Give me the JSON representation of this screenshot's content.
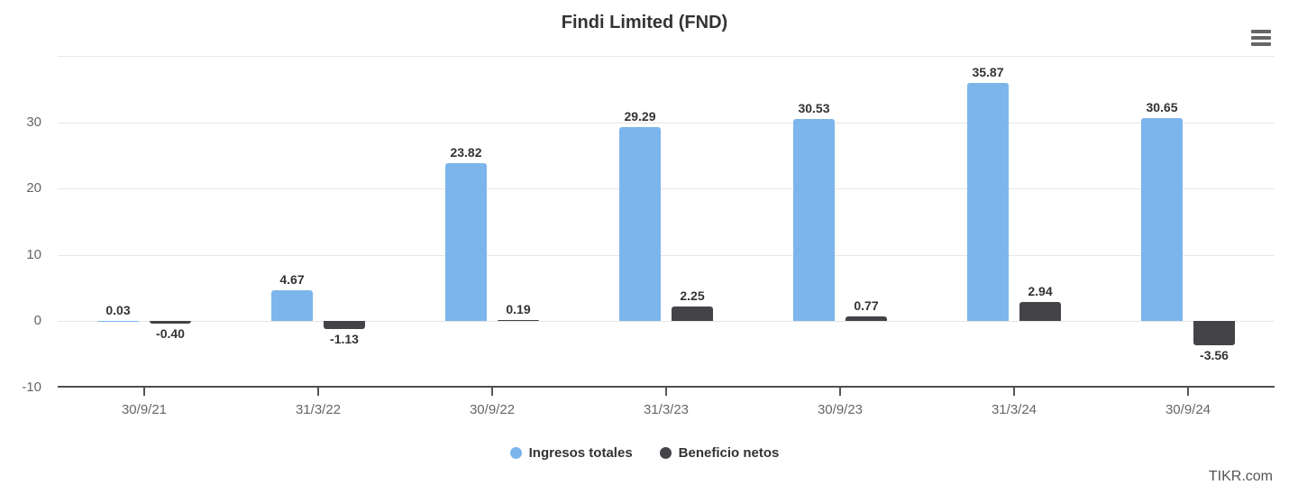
{
  "header": {
    "menu_icon": "hamburger"
  },
  "footer": {
    "watermark": "TIKR.com"
  },
  "colors": {
    "series_revenue": "#7cb5ec",
    "series_net_income": "#434348",
    "grid": "#e6e6e6",
    "axis": "#4f4f4f",
    "value_label": "#333333",
    "tick_label": "#666666",
    "title": "#333333"
  },
  "chart_data": {
    "type": "bar",
    "title": "Findi Limited (FND)",
    "categories": [
      "30/9/21",
      "31/3/22",
      "30/9/22",
      "31/3/23",
      "30/9/23",
      "31/3/24",
      "30/9/24"
    ],
    "series": [
      {
        "name": "Ingresos totales",
        "color": "#7cb5ec",
        "values": [
          0.03,
          4.67,
          23.82,
          29.29,
          30.53,
          35.87,
          30.65
        ]
      },
      {
        "name": "Beneficio netos",
        "color": "#434348",
        "values": [
          -0.4,
          -1.13,
          0.19,
          2.25,
          0.77,
          2.94,
          -3.56
        ]
      }
    ],
    "ylim": [
      -10,
      40
    ],
    "yticks": [
      -10,
      0,
      10,
      20,
      30
    ],
    "gridline_values": [
      0,
      10,
      20,
      30,
      40
    ],
    "grid": true,
    "legend_position": "bottom",
    "value_labels": true,
    "value_label_decimals": 2,
    "xlabel": "",
    "ylabel": ""
  }
}
